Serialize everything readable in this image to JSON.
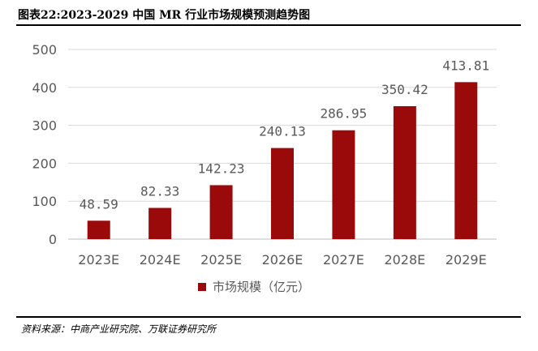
{
  "figure": {
    "title": "图表22:2023-2029 中国 MR 行业市场规模预测趋势图",
    "source": "资料来源：中商产业研究院、万联证券研究所"
  },
  "colors": {
    "bar": "#9B0A0A",
    "axis_text": "#595959",
    "gridline": "#D9D9D9",
    "axis_line": "#BFBFBF"
  },
  "chart_data": {
    "type": "bar",
    "title": "",
    "xlabel": "",
    "ylabel": "",
    "categories": [
      "2023E",
      "2024E",
      "2025E",
      "2026E",
      "2027E",
      "2028E",
      "2029E"
    ],
    "series": [
      {
        "name": "市场规模（亿元）",
        "values": [
          48.59,
          82.33,
          142.23,
          240.13,
          286.95,
          350.42,
          413.81
        ],
        "labels": [
          "48.59",
          "82.33",
          "142.23",
          "240.13",
          "286.95",
          "350.42",
          "413.81"
        ]
      }
    ],
    "ylim": [
      0,
      500
    ],
    "yticks": [
      0,
      100,
      200,
      300,
      400,
      500
    ],
    "grid": true,
    "legend": "bottom-center"
  }
}
